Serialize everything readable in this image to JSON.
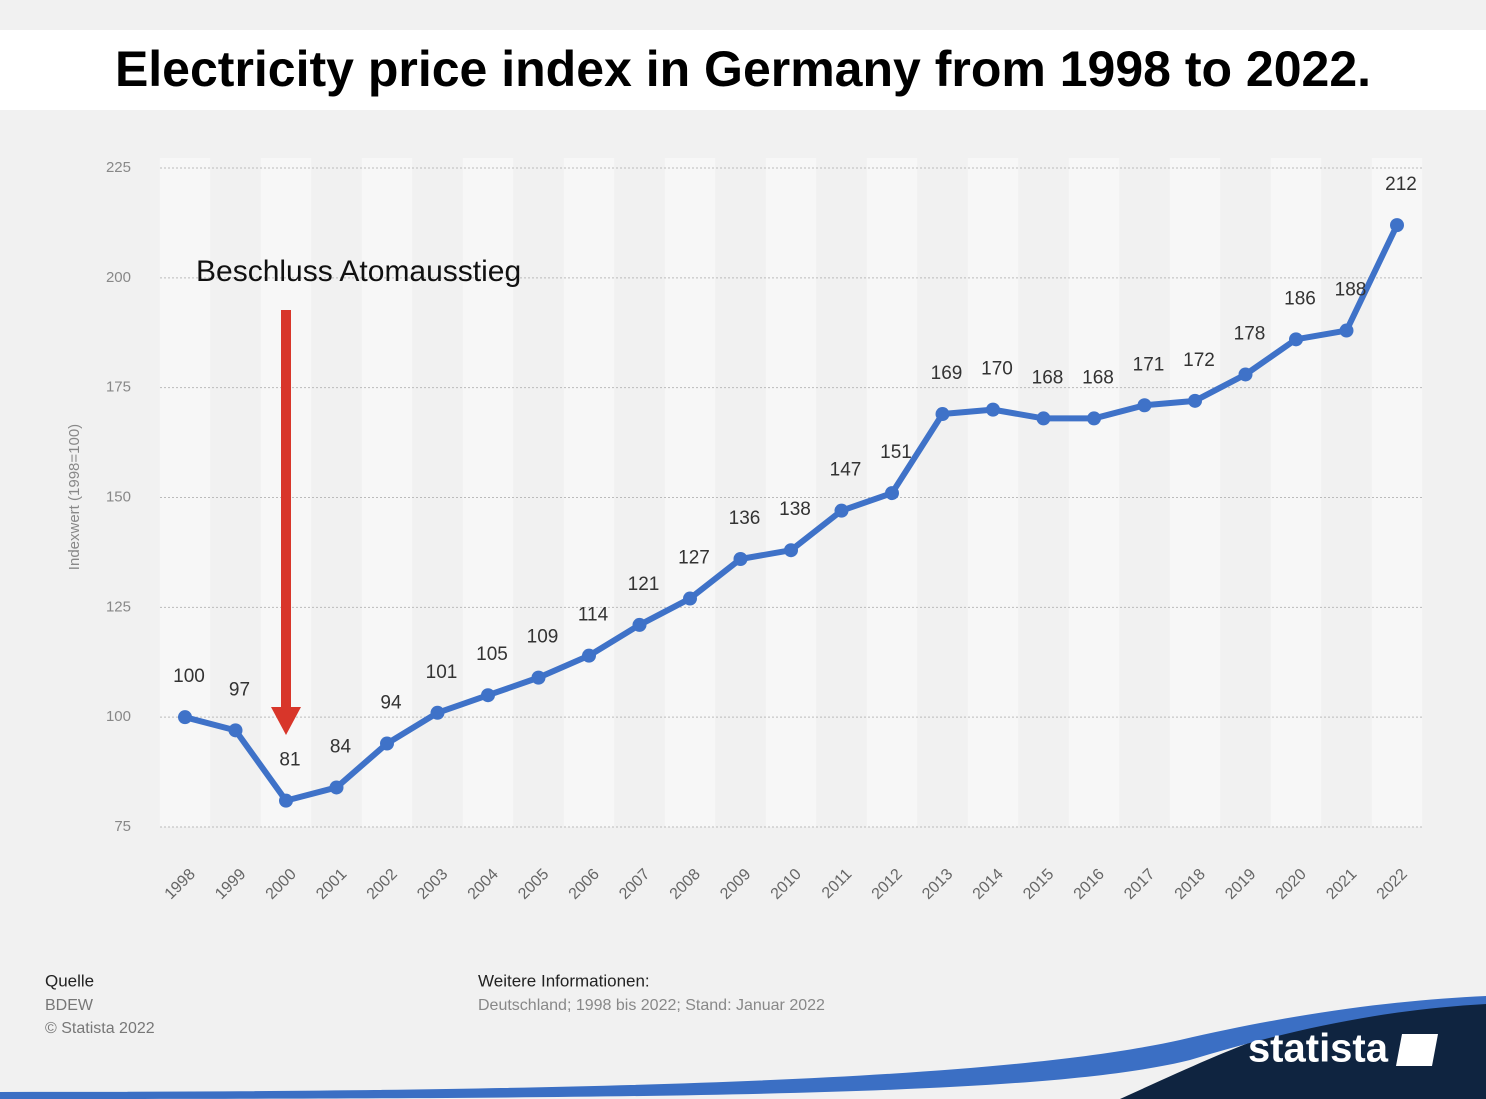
{
  "chart_data": {
    "type": "line",
    "title": "Electricity price index in Germany from 1998 to 2022.",
    "y_label": "Indexwert (1998=100)",
    "annotation": "Beschluss Atomausstieg",
    "categories": [
      "1998",
      "1999",
      "2000",
      "2001",
      "2002",
      "2003",
      "2004",
      "2005",
      "2006",
      "2007",
      "2008",
      "2009",
      "2010",
      "2011",
      "2012",
      "2013",
      "2014",
      "2015",
      "2016",
      "2017",
      "2018",
      "2019",
      "2020",
      "2021",
      "2022"
    ],
    "values": [
      100,
      97,
      81,
      84,
      94,
      101,
      105,
      109,
      114,
      121,
      127,
      136,
      138,
      147,
      151,
      169,
      170,
      168,
      168,
      171,
      172,
      178,
      186,
      188,
      212
    ],
    "color": "#3f72c8",
    "ylim": [
      75,
      225
    ],
    "yticks": [
      75,
      100,
      125,
      150,
      175,
      200,
      225
    ],
    "grid": true,
    "source_heading": "Quelle",
    "source": "BDEW",
    "copyright": "© Statista 2022",
    "info_heading": "Weitere Informationen:",
    "info": "Deutschland; 1998 bis 2022; Stand: Januar 2022",
    "brand": "statista"
  }
}
